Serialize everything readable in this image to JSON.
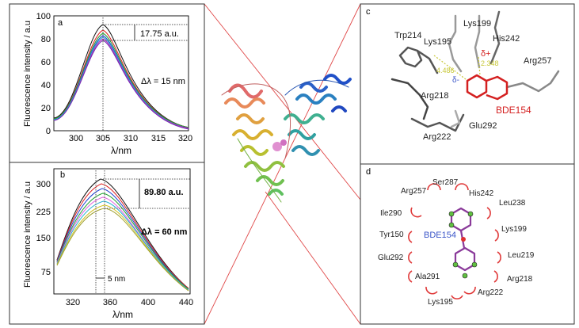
{
  "panel_a": {
    "letter": "a",
    "ylabel": "Fluorescence intensity / a.u",
    "xlabel": "λ/nm",
    "annotation": "17.75 a.u.",
    "delta_label": "Δλ = 15 nm",
    "x_ticks": [
      "300",
      "305",
      "310",
      "315",
      "320"
    ],
    "y_ticks": [
      "0",
      "20",
      "40",
      "60",
      "80",
      "100"
    ]
  },
  "panel_b": {
    "letter": "b",
    "ylabel": "Fluorescence intensity / a.u",
    "xlabel": "λ/nm",
    "annotation": "89.80 a.u.",
    "delta_label": "Δλ = 60 nm",
    "shift_label": "5 nm",
    "x_ticks": [
      "320",
      "360",
      "400",
      "440"
    ],
    "y_ticks": [
      "75",
      "150",
      "225",
      "300"
    ]
  },
  "panel_c": {
    "letter": "c",
    "residues": [
      "Lys199",
      "His242",
      "Trp214",
      "Lys195",
      "Arg257",
      "Arg218",
      "Glu292",
      "Arg222"
    ],
    "ligand": "BDE154",
    "delta_plus": "δ+",
    "delta_minus": "δ-",
    "distance_1": "4.486",
    "distance_2": "2.348"
  },
  "panel_d": {
    "letter": "d",
    "residues": [
      "Ser287",
      "Arg257",
      "His242",
      "Leu238",
      "Ile290",
      "Lys199",
      "Tyr150",
      "Leu219",
      "Glu292",
      "Ala291",
      "Arg218",
      "Arg222",
      "Lys195"
    ],
    "ligand": "BDE154"
  },
  "colors": {
    "ligand_red": "#d42020",
    "ligand_blue": "#3a55c8",
    "distance_yellow": "#c8c83a",
    "arc_red": "#e03a3a",
    "connector": "#e04848"
  }
}
